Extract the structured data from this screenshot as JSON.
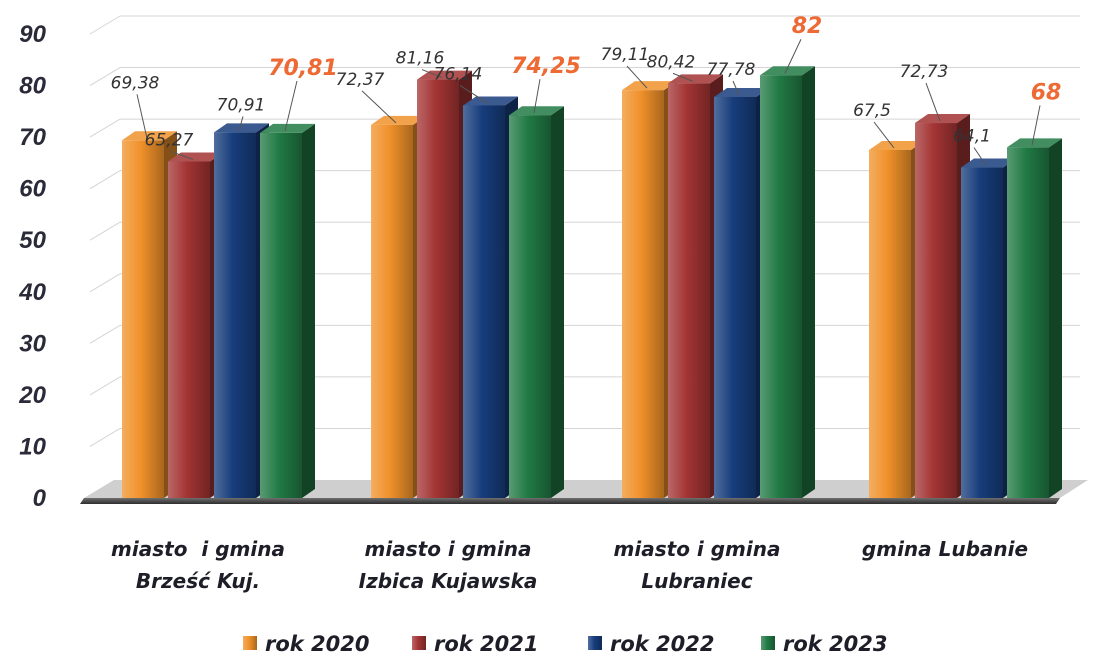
{
  "chart_data": {
    "type": "bar",
    "title": "",
    "xlabel": "",
    "ylabel": "",
    "ylim": [
      0,
      90
    ],
    "yticks": [
      "0",
      "10",
      "20",
      "30",
      "40",
      "50",
      "60",
      "70",
      "80",
      "90"
    ],
    "grid": true,
    "legend_position": "bottom",
    "categories": [
      [
        "miasto  i gmina",
        "Brześć Kuj."
      ],
      [
        "miasto i gmina",
        "Izbica Kujawska"
      ],
      [
        "miasto i gmina",
        "Lubraniec"
      ],
      [
        "gmina Lubanie"
      ]
    ],
    "series": [
      {
        "name": "rok 2020",
        "color": "#f0912a",
        "values": [
          69.38,
          72.37,
          79.11,
          67.5
        ],
        "labels": [
          "69,38",
          "72,37",
          "79,11",
          "67,5"
        ]
      },
      {
        "name": "rok 2021",
        "color": "#a33434",
        "values": [
          65.27,
          81.16,
          80.42,
          72.73
        ],
        "labels": [
          "65,27",
          "81,16",
          "80,42",
          "72,73"
        ]
      },
      {
        "name": "rok 2022",
        "color": "#173d7c",
        "values": [
          70.91,
          76.14,
          77.78,
          64.1
        ],
        "labels": [
          "70,91",
          "76,14",
          "77,78",
          "64,1"
        ]
      },
      {
        "name": "rok 2023",
        "color": "#217a44",
        "values": [
          70.81,
          74.25,
          82,
          68
        ],
        "labels": [
          "70,81",
          "74,25",
          "82",
          "68"
        ],
        "highlight_labels": true
      }
    ],
    "highlight_color": "#ee6a35"
  }
}
